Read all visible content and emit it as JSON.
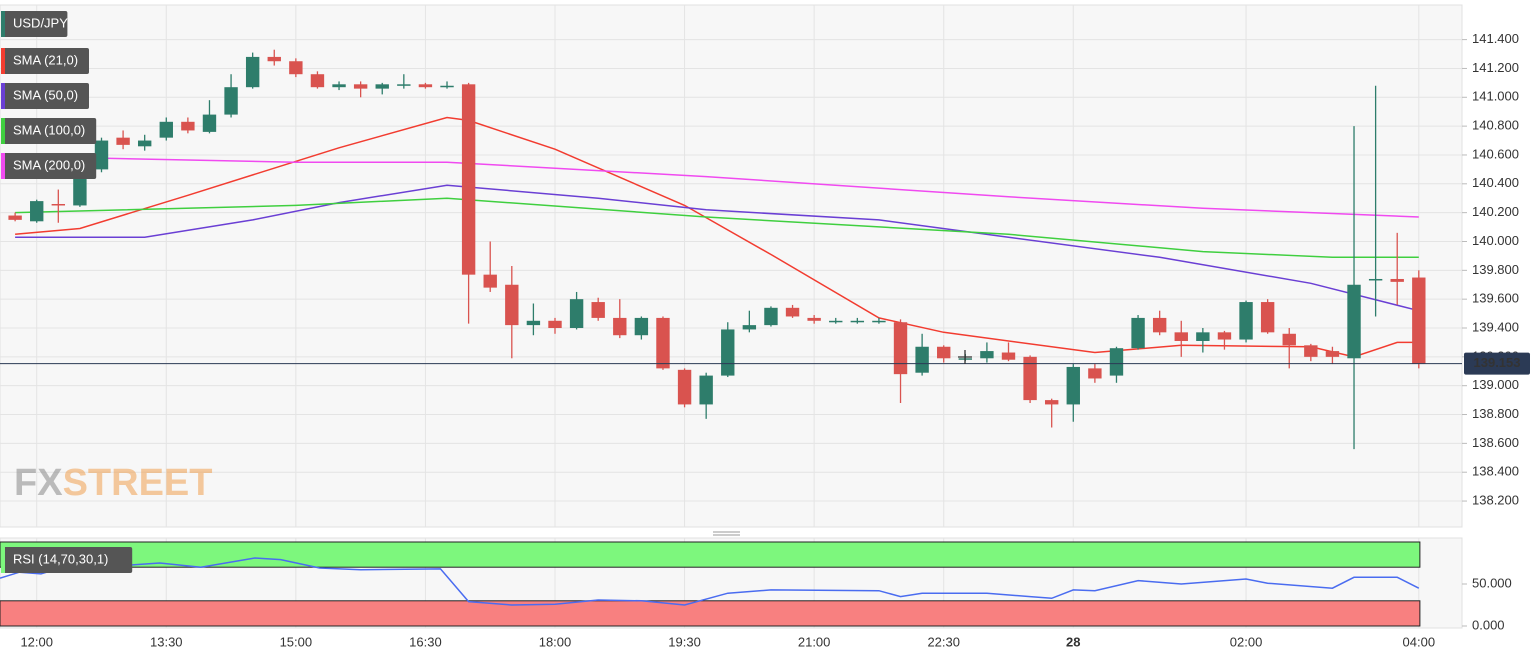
{
  "chart_data": [
    {
      "type": "candlestick",
      "symbol": "USD/JPY",
      "categories": [
        null,
        "12:00",
        null,
        null,
        null,
        null,
        null,
        "13:30",
        null,
        null,
        null,
        null,
        null,
        "15:00",
        null,
        null,
        null,
        null,
        null,
        "16:30",
        null,
        null,
        null,
        null,
        null,
        "18:00",
        null,
        null,
        null,
        null,
        null,
        "19:30",
        null,
        null,
        null,
        null,
        null,
        "21:00",
        null,
        null,
        null,
        null,
        null,
        "22:30",
        null,
        null,
        null,
        null,
        null,
        "28",
        null,
        null,
        null,
        null,
        null,
        null,
        null,
        "02:00",
        null,
        null,
        null,
        null,
        null,
        null,
        null,
        "04:00"
      ],
      "open": [
        140.18,
        140.14,
        140.26,
        140.25,
        140.5,
        140.72,
        140.66,
        140.72,
        140.83,
        140.76,
        140.88,
        141.07,
        141.28,
        141.25,
        141.16,
        141.07,
        141.09,
        141.06,
        141.09,
        141.09,
        141.08,
        141.09,
        139.77,
        139.7,
        139.42,
        139.45,
        139.4,
        139.58,
        139.47,
        139.35,
        139.47,
        139.11,
        138.87,
        139.07,
        139.39,
        139.42,
        139.54,
        139.47,
        139.45,
        139.45,
        139.45,
        139.44,
        139.09,
        139.27,
        139.19,
        139.19,
        139.23,
        139.2,
        138.9,
        138.87,
        139.12,
        139.07,
        139.26,
        139.47,
        139.37,
        139.31,
        139.37,
        139.32,
        139.58,
        139.36,
        139.28,
        139.24,
        139.19,
        139.73,
        139.74,
        139.75
      ],
      "high": [
        140.2,
        140.29,
        140.36,
        140.51,
        140.72,
        140.77,
        140.74,
        140.86,
        140.86,
        140.98,
        141.16,
        141.31,
        141.33,
        141.27,
        141.18,
        141.11,
        141.11,
        141.1,
        141.16,
        141.1,
        141.11,
        141.1,
        140.0,
        139.83,
        139.57,
        139.47,
        139.65,
        139.61,
        139.6,
        139.48,
        139.48,
        139.12,
        139.09,
        139.44,
        139.52,
        139.55,
        139.56,
        139.49,
        139.47,
        139.47,
        139.47,
        139.46,
        139.36,
        139.28,
        139.22,
        139.3,
        139.3,
        139.21,
        138.91,
        139.15,
        139.15,
        139.27,
        139.49,
        139.52,
        139.45,
        139.4,
        139.38,
        139.59,
        139.6,
        139.4,
        139.29,
        139.27,
        140.8,
        141.08,
        140.06,
        139.8
      ],
      "low": [
        140.14,
        140.13,
        140.13,
        140.24,
        140.48,
        140.64,
        140.63,
        140.7,
        140.75,
        140.75,
        140.86,
        141.06,
        141.22,
        141.14,
        141.06,
        141.05,
        141.0,
        141.02,
        141.06,
        141.06,
        141.06,
        139.43,
        139.65,
        139.19,
        139.35,
        139.36,
        139.39,
        139.45,
        139.33,
        139.32,
        139.11,
        138.85,
        138.77,
        139.06,
        139.37,
        139.41,
        139.47,
        139.43,
        139.43,
        139.43,
        139.43,
        138.88,
        139.07,
        139.16,
        139.17,
        139.16,
        139.17,
        138.88,
        138.71,
        138.75,
        139.02,
        139.02,
        139.25,
        139.35,
        139.2,
        139.23,
        139.25,
        139.3,
        139.36,
        139.12,
        139.17,
        139.15,
        138.56,
        139.48,
        139.56,
        139.12
      ],
      "close": [
        140.15,
        140.28,
        140.25,
        140.5,
        140.7,
        140.67,
        140.7,
        140.83,
        140.77,
        140.88,
        141.07,
        141.28,
        141.25,
        141.16,
        141.07,
        141.09,
        141.06,
        141.09,
        141.09,
        141.07,
        141.08,
        139.77,
        139.68,
        139.42,
        139.45,
        139.4,
        139.6,
        139.47,
        139.35,
        139.47,
        139.12,
        138.87,
        139.07,
        139.39,
        139.42,
        139.54,
        139.48,
        139.45,
        139.45,
        139.45,
        139.45,
        139.08,
        139.27,
        139.19,
        139.19,
        139.24,
        139.18,
        138.9,
        138.87,
        139.13,
        139.05,
        139.26,
        139.47,
        139.37,
        139.31,
        139.37,
        139.32,
        139.58,
        139.37,
        139.28,
        139.2,
        139.2,
        139.7,
        139.74,
        139.72,
        139.153
      ],
      "up_color": "#2e7d6b",
      "down_color": "#d9534f",
      "symbol_color": "#2e7d6b",
      "last_price": 139.153,
      "series": [
        {
          "name": "SMA (21,0)",
          "color": "#f23c30",
          "x": [
            0,
            3,
            8,
            15,
            20,
            21,
            25,
            31,
            35,
            40,
            43,
            50,
            54,
            60,
            62,
            64,
            65
          ],
          "values": [
            140.05,
            140.09,
            140.32,
            140.65,
            140.86,
            140.84,
            140.64,
            140.25,
            139.91,
            139.47,
            139.37,
            139.23,
            139.28,
            139.27,
            139.2,
            139.3,
            139.3
          ]
        },
        {
          "name": "SMA (50,0)",
          "color": "#6a3fd4",
          "x": [
            0,
            6,
            11,
            15,
            20,
            27,
            32,
            40,
            46,
            53,
            60,
            65
          ],
          "values": [
            140.03,
            140.03,
            140.15,
            140.27,
            140.39,
            140.3,
            140.22,
            140.15,
            140.03,
            139.89,
            139.71,
            139.52
          ]
        },
        {
          "name": "SMA (100,0)",
          "color": "#3fcf3f",
          "x": [
            0,
            13,
            20,
            32,
            46,
            55,
            61,
            65
          ],
          "values": [
            140.2,
            140.25,
            140.3,
            140.17,
            140.05,
            139.93,
            139.89,
            139.89
          ]
        },
        {
          "name": "SMA (200,0)",
          "color": "#f04af0",
          "x": [
            0,
            13,
            20,
            32,
            46,
            55,
            65
          ],
          "values": [
            140.59,
            140.55,
            140.55,
            140.45,
            140.31,
            140.23,
            140.17
          ]
        }
      ],
      "xlim": [
        -0.7,
        67
      ],
      "ylim": [
        138.02,
        141.64
      ],
      "yticks": [
        {
          "value": 138.2,
          "label": "138.200"
        },
        {
          "value": 138.4,
          "label": "138.400"
        },
        {
          "value": 138.6,
          "label": "138.600"
        },
        {
          "value": 138.8,
          "label": "138.800"
        },
        {
          "value": 139.0,
          "label": "139.000"
        },
        {
          "value": 139.2,
          "label": "139.200"
        },
        {
          "value": 139.4,
          "label": "139.400"
        },
        {
          "value": 139.6,
          "label": "139.600"
        },
        {
          "value": 139.8,
          "label": "139.800"
        },
        {
          "value": 140.0,
          "label": "140.000"
        },
        {
          "value": 140.2,
          "label": "140.200"
        },
        {
          "value": 140.4,
          "label": "140.400"
        },
        {
          "value": 140.6,
          "label": "140.600"
        },
        {
          "value": 140.8,
          "label": "140.800"
        },
        {
          "value": 141.0,
          "label": "141.000"
        },
        {
          "value": 141.2,
          "label": "141.200"
        },
        {
          "value": 141.4,
          "label": "141.400"
        }
      ],
      "grid": true,
      "watermark": [
        "FX",
        "STREET"
      ]
    },
    {
      "type": "line",
      "title": "RSI (14,70,30,1)",
      "series": [
        {
          "name": "RSI",
          "color": "#4a6cf0",
          "x": [
            -0.7,
            0.2,
            1.2,
            2.1,
            3.9,
            6.7,
            8.6,
            11.1,
            12.3,
            14.1,
            16,
            19.7,
            21,
            23,
            25,
            27,
            29,
            31,
            33,
            35,
            40,
            41,
            42,
            45,
            47,
            48,
            49,
            50,
            52,
            54,
            57,
            58,
            61,
            62,
            64,
            65
          ],
          "values": [
            57,
            64,
            62,
            69,
            70,
            75,
            70,
            81,
            79,
            69,
            67,
            68,
            29,
            25,
            26,
            31,
            30,
            25,
            39,
            43,
            42,
            35,
            39,
            39,
            35,
            33,
            43,
            42,
            54,
            50,
            56,
            51,
            45,
            58,
            58,
            45
          ]
        }
      ],
      "overbought": 70,
      "oversold": 30,
      "overbought_color": "#7df77d",
      "oversold_color": "#f88080",
      "xlim": [
        -0.7,
        67
      ],
      "ylim": [
        0,
        100
      ],
      "yticks": [
        {
          "value": 50,
          "label": "50.000"
        },
        {
          "value": 0,
          "label": "0.000"
        }
      ]
    }
  ]
}
